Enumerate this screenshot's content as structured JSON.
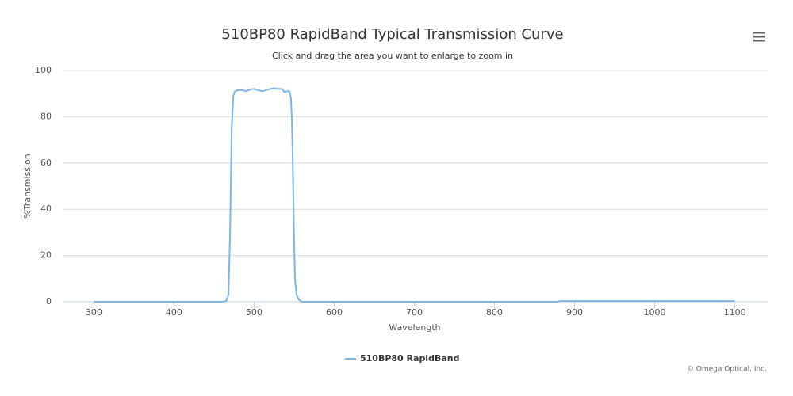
{
  "chart_data": {
    "type": "line",
    "title": "510BP80 RapidBand Typical Transmission Curve",
    "subtitle": "Click and drag the area you want to enlarge to zoom in",
    "x_label": "Wavelength",
    "y_label": "%Transmission",
    "credit": "© Omega Optical, Inc.",
    "x": [
      300,
      350,
      400,
      450,
      460,
      465,
      468,
      470,
      472,
      474,
      476,
      480,
      485,
      490,
      495,
      500,
      505,
      510,
      515,
      520,
      525,
      530,
      535,
      538,
      541,
      544,
      546,
      547,
      548,
      549,
      550,
      551,
      553,
      556,
      560,
      600,
      700,
      800,
      880,
      881,
      900,
      1000,
      1100
    ],
    "series": [
      {
        "name": "510BP80 RapidBand",
        "color": "#7cb5ec",
        "values": [
          0,
          0,
          0,
          0,
          0,
          0.3,
          3,
          30,
          75,
          89,
          91,
          91.5,
          91.5,
          91,
          91.8,
          92,
          91.5,
          91,
          91.5,
          92,
          92.3,
          92,
          92,
          90.5,
          91,
          91,
          88,
          80,
          65,
          45,
          25,
          10,
          3,
          0.8,
          0,
          0,
          0,
          0,
          0,
          0.3,
          0.3,
          0.3,
          0.3
        ]
      }
    ],
    "xlim": [
      262,
      1141
    ],
    "ylim": [
      0,
      100
    ],
    "xticks": [
      300,
      400,
      500,
      600,
      700,
      800,
      900,
      1000,
      1100
    ],
    "yticks": [
      0,
      20,
      40,
      60,
      80,
      100
    ],
    "grid": true
  }
}
